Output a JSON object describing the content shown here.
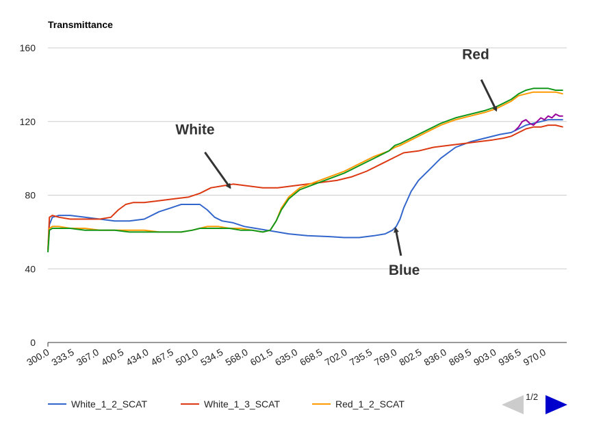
{
  "chart_data": {
    "type": "line",
    "title": "",
    "ylabel": "Transmittance",
    "xlabel": "",
    "ylim": [
      0,
      160
    ],
    "yticks": [
      0,
      40,
      80,
      120,
      160
    ],
    "xlim": [
      300,
      1000
    ],
    "xtick_labels": [
      "300.0",
      "333.5",
      "367.0",
      "400.5",
      "434.0",
      "467.5",
      "501.0",
      "534.5",
      "568.0",
      "601.5",
      "635.0",
      "668.5",
      "702.0",
      "735.5",
      "769.0",
      "802.5",
      "836.0",
      "869.5",
      "903.0",
      "936.5",
      "970.0"
    ],
    "grid": true,
    "legend_position": "bottom",
    "series": [
      {
        "name": "White_1_2_SCAT",
        "color": "#3366cc",
        "x": [
          300,
          302,
          306,
          315,
          330,
          350,
          370,
          390,
          410,
          430,
          450,
          465,
          480,
          495,
          505,
          515,
          525,
          535,
          550,
          565,
          580,
          595,
          610,
          625,
          650,
          680,
          700,
          720,
          740,
          755,
          765,
          770,
          775,
          780,
          790,
          800,
          815,
          830,
          850,
          870,
          890,
          910,
          925,
          935,
          945,
          955,
          965,
          975,
          985,
          995
        ],
        "y": [
          50,
          64,
          68,
          69,
          69,
          68,
          67,
          66,
          66,
          67,
          71,
          73,
          75,
          75,
          75,
          72,
          68,
          66,
          65,
          63,
          62,
          61,
          60,
          59,
          58,
          57.5,
          57,
          57,
          58,
          59,
          61,
          63,
          67,
          73,
          82,
          88,
          94,
          100,
          106,
          109,
          111,
          113,
          114,
          116,
          118,
          119,
          120,
          121,
          121,
          121
        ]
      },
      {
        "name": "White_1_3_SCAT",
        "color": "#dc3912",
        "x": [
          300,
          302,
          306,
          315,
          330,
          350,
          370,
          385,
          395,
          405,
          415,
          430,
          450,
          470,
          490,
          505,
          520,
          535,
          550,
          570,
          590,
          610,
          630,
          650,
          670,
          690,
          710,
          730,
          750,
          770,
          780,
          800,
          820,
          840,
          860,
          880,
          900,
          915,
          925,
          935,
          945,
          955,
          965,
          975,
          985,
          995
        ],
        "y": [
          50,
          68,
          69,
          68,
          67,
          67,
          67,
          68,
          72,
          75,
          76,
          76,
          77,
          78,
          79,
          81,
          84,
          85,
          86,
          85,
          84,
          84,
          85,
          86,
          87,
          88,
          90,
          93,
          97,
          101,
          103,
          104,
          106,
          107,
          108,
          109,
          110,
          111,
          112,
          114,
          116,
          117,
          117,
          118,
          118,
          117
        ]
      },
      {
        "name": "Red_1_2_SCAT",
        "color": "#ff9900",
        "x": [
          300,
          302,
          306,
          315,
          330,
          350,
          370,
          390,
          410,
          430,
          450,
          465,
          480,
          495,
          505,
          515,
          530,
          545,
          560,
          575,
          590,
          600,
          608,
          615,
          625,
          640,
          660,
          680,
          700,
          720,
          740,
          760,
          768,
          775,
          790,
          810,
          830,
          850,
          870,
          890,
          905,
          915,
          925,
          935,
          945,
          955,
          965,
          975,
          985,
          995
        ],
        "y": [
          50,
          62,
          63,
          63,
          62,
          62,
          61,
          61,
          61,
          61,
          60,
          60,
          60,
          61,
          62,
          63,
          63,
          62,
          62,
          61,
          60,
          61,
          66,
          73,
          79,
          84,
          87,
          90,
          93,
          97,
          101,
          104,
          106,
          107,
          110,
          114,
          118,
          121,
          123,
          125,
          127,
          129,
          131,
          134,
          135,
          136,
          136,
          136,
          136,
          135
        ]
      },
      {
        "name": "",
        "color": "#109618",
        "x": [
          300,
          302,
          306,
          315,
          330,
          350,
          370,
          390,
          410,
          430,
          450,
          465,
          480,
          495,
          505,
          515,
          530,
          545,
          560,
          575,
          590,
          600,
          608,
          615,
          625,
          640,
          660,
          680,
          700,
          720,
          740,
          760,
          768,
          775,
          790,
          810,
          830,
          850,
          870,
          890,
          905,
          915,
          925,
          935,
          945,
          955,
          965,
          975,
          985,
          995
        ],
        "y": [
          49,
          61,
          62,
          62,
          62,
          61,
          61,
          61,
          60,
          60,
          60,
          60,
          60,
          61,
          62,
          62,
          62,
          62,
          61,
          61,
          60,
          61,
          66,
          72,
          78,
          83,
          86,
          89,
          92,
          96,
          100,
          104,
          107,
          108,
          111,
          115,
          119,
          122,
          124,
          126,
          128,
          130,
          132,
          135,
          137,
          138,
          138,
          138,
          137,
          137
        ]
      },
      {
        "name": "",
        "color": "#990099",
        "x": [
          930,
          935,
          940,
          945,
          950,
          955,
          960,
          965,
          970,
          975,
          980,
          985,
          990,
          995
        ],
        "y": [
          115,
          117,
          120,
          121,
          119,
          118,
          120,
          122,
          121,
          123,
          122,
          124,
          123,
          123
        ]
      }
    ],
    "annotations": [
      {
        "text": "White",
        "at": [
          546,
          84
        ]
      },
      {
        "text": "Red",
        "at": [
          905,
          126
        ]
      },
      {
        "text": "Blue",
        "at": [
          769,
          62
        ]
      }
    ]
  },
  "legend": {
    "items": [
      "White_1_2_SCAT",
      "White_1_3_SCAT",
      "Red_1_2_SCAT"
    ]
  },
  "pager": {
    "label": "1/2"
  }
}
